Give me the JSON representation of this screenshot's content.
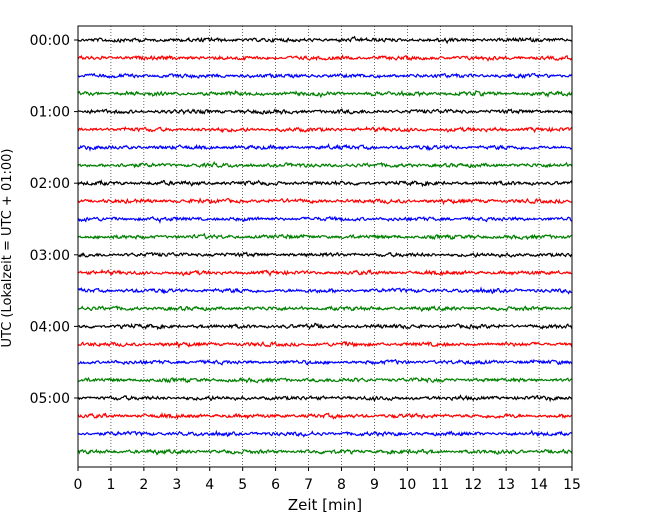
{
  "chart_data": {
    "type": "line",
    "title": "",
    "xlabel": "Zeit  [min]",
    "ylabel": "UTC (Lokalzeit = UTC + 01:00)",
    "xlim": [
      0,
      15
    ],
    "x_ticks": [
      "0",
      "1",
      "2",
      "3",
      "4",
      "5",
      "6",
      "7",
      "8",
      "9",
      "10",
      "11",
      "12",
      "13",
      "14",
      "15"
    ],
    "y_ticks": [
      "00:00",
      "01:00",
      "02:00",
      "03:00",
      "04:00",
      "05:00"
    ],
    "grid": "vertical dotted at each minute",
    "trace_interval_min": 15,
    "trace_count": 24,
    "trace_start_times": [
      "00:00",
      "00:15",
      "00:30",
      "00:45",
      "01:00",
      "01:15",
      "01:30",
      "01:45",
      "02:00",
      "02:15",
      "02:30",
      "02:45",
      "03:00",
      "03:15",
      "03:30",
      "03:45",
      "04:00",
      "04:15",
      "04:30",
      "04:45",
      "05:00",
      "05:15",
      "05:30",
      "05:45"
    ],
    "trace_colors": [
      "#000000",
      "#ff0000",
      "#0000ff",
      "#008000"
    ]
  }
}
